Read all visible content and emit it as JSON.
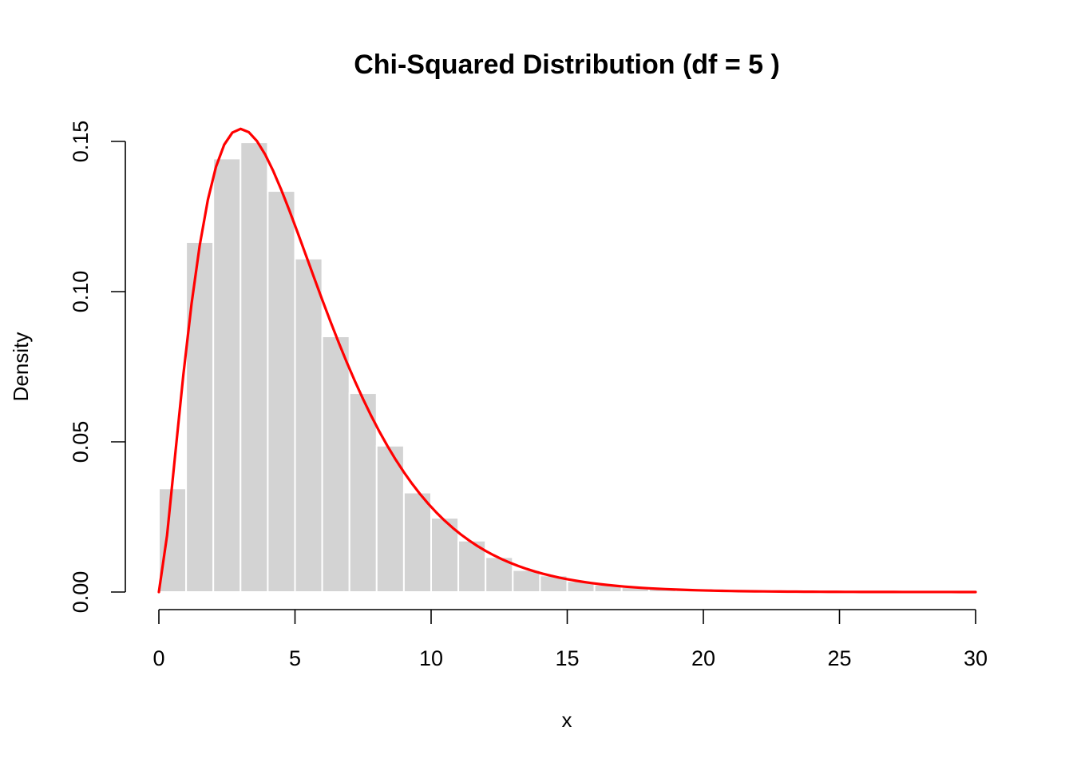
{
  "chart_data": {
    "type": "bar",
    "title": "Chi-Squared Distribution (df = 5 )",
    "xlabel": "x",
    "ylabel": "Density",
    "xlim": [
      0,
      30
    ],
    "ylim": [
      0,
      0.15
    ],
    "x_ticks": [
      0,
      5,
      10,
      15,
      20,
      25,
      30
    ],
    "x_tick_labels": [
      "0",
      "5",
      "10",
      "15",
      "20",
      "25",
      "30"
    ],
    "y_ticks": [
      0,
      0.05,
      0.1,
      0.15
    ],
    "y_tick_labels": [
      "0.00",
      "0.05",
      "0.10",
      "0.15"
    ],
    "grid": false,
    "histogram": {
      "bin_width": 1,
      "bin_start": 0,
      "fill_color": "#d3d3d3",
      "border_color": "#ffffff",
      "densities": [
        0.0345,
        0.1165,
        0.1443,
        0.1497,
        0.1335,
        0.111,
        0.0851,
        0.0662,
        0.0487,
        0.0331,
        0.0247,
        0.0171,
        0.0116,
        0.0073,
        0.0055,
        0.0036,
        0.0024,
        0.0016,
        0.001,
        0.0006,
        0.0004,
        0.0003,
        0.0002,
        0.0001,
        0.0001,
        0.0,
        0.0,
        0.0,
        0.0,
        0.0
      ]
    },
    "curve": {
      "type": "line",
      "distribution": "chi-squared",
      "df": 5,
      "color": "#ff0000",
      "x_from": 0,
      "x_to": 30
    }
  }
}
